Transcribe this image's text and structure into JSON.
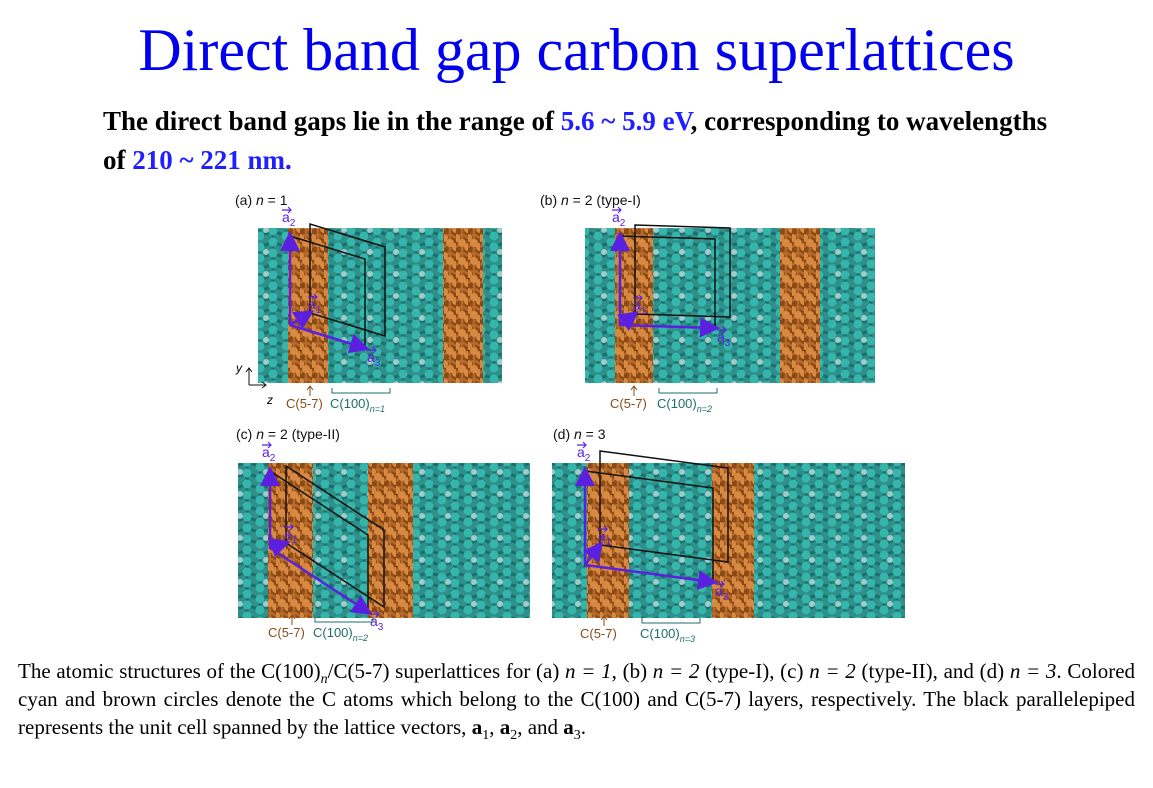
{
  "title": "Direct band gap carbon superlattices",
  "subtitle": {
    "highlight_color": "#1f1fff",
    "parts": [
      {
        "text": "The direct band gaps lie in the range of ",
        "hl": false
      },
      {
        "text": "5.6 ~ 5.9 eV",
        "hl": true
      },
      {
        "text": ", corresponding to wavelengths of ",
        "hl": false
      },
      {
        "text": "210 ~ 221 nm.",
        "hl": true
      }
    ]
  },
  "vector_symbol": "a",
  "c57": "C(5-7)",
  "c100": "C(100)",
  "axes": [
    "y",
    "z"
  ],
  "panels": [
    {
      "label": {
        "pre": "(a) ",
        "var": "n",
        "post": " = 1"
      },
      "vectors": [
        "2",
        "1",
        "3"
      ],
      "sub": "n=1"
    },
    {
      "label": {
        "pre": "(b) ",
        "var": "n",
        "post": " = 2 (type-I)"
      },
      "vectors": [
        "2",
        "1",
        "3"
      ],
      "sub": "n=2"
    },
    {
      "label": {
        "pre": "(c) ",
        "var": "n",
        "post": " = 2 (type-II)"
      },
      "vectors": [
        "2",
        "1",
        "3"
      ],
      "sub": "n=2"
    },
    {
      "label": {
        "pre": "(d) ",
        "var": "n",
        "post": " = 3"
      },
      "vectors": [
        "2",
        "1",
        "3"
      ],
      "sub": "n=3"
    }
  ],
  "caption": [
    {
      "text": "The atomic structures of the C(100)",
      "style": "n"
    },
    {
      "text": "n",
      "style": "sub-i"
    },
    {
      "text": "/C(5-7) superlattices for (a) ",
      "style": "n"
    },
    {
      "text": "n = 1",
      "style": "i"
    },
    {
      "text": ", (b) ",
      "style": "n"
    },
    {
      "text": "n = 2",
      "style": "i"
    },
    {
      "text": " (type-I), (c) ",
      "style": "n"
    },
    {
      "text": "n = 2",
      "style": "i"
    },
    {
      "text": " (type-II), and (d) ",
      "style": "n"
    },
    {
      "text": "n = 3",
      "style": "i"
    },
    {
      "text": ". Colored cyan and brown circles denote the C atoms which belong to the C(100) and C(5-7) layers, respectively. The black parallelepiped represents the unit cell spanned by the lattice vectors, ",
      "style": "n"
    },
    {
      "text": "a",
      "style": "b"
    },
    {
      "text": "1",
      "style": "sub"
    },
    {
      "text": ", ",
      "style": "n"
    },
    {
      "text": "a",
      "style": "b"
    },
    {
      "text": "2",
      "style": "sub"
    },
    {
      "text": ", and ",
      "style": "n"
    },
    {
      "text": "a",
      "style": "b"
    },
    {
      "text": "3",
      "style": "sub"
    },
    {
      "text": ".",
      "style": "n"
    }
  ]
}
